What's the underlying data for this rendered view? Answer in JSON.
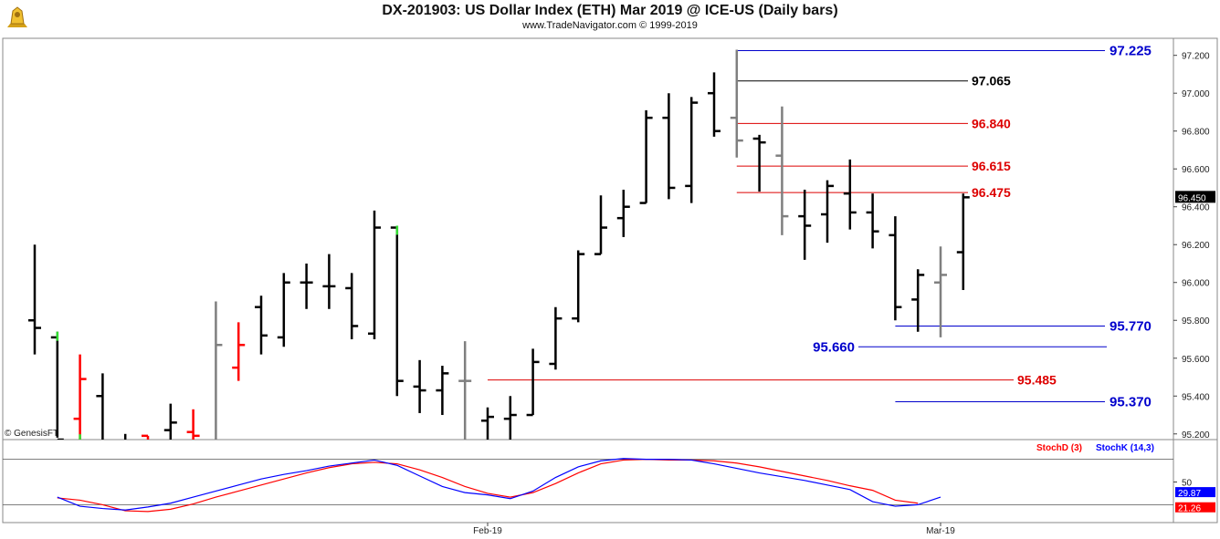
{
  "header": {
    "title": "DX-201903:  US Dollar Index (ETH) Mar 2019 @ ICE-US  (Daily bars)",
    "copyright": "www.TradeNavigator.com © 1999-2019"
  },
  "watermark": "© GenesisFT",
  "colors": {
    "black_bar": "#000000",
    "gray_bar": "#7f7f7f",
    "red_bar": "#ff0000",
    "green_bar": "#33dd33",
    "blue_level": "#0000cc",
    "red_level": "#dd0000",
    "stochk": "#0000ff",
    "stochd": "#ff0000"
  },
  "chart_data": [
    {
      "type": "ohlc",
      "price_axis": {
        "ylim": [
          95.17,
          97.29
        ],
        "ticks": [
          95.2,
          95.4,
          95.6,
          95.8,
          96.0,
          96.2,
          96.4,
          96.6,
          96.8,
          97.0,
          97.2
        ],
        "tick_labels": [
          "95.200",
          "95.400",
          "95.600",
          "95.800",
          "96.000",
          "96.200",
          "96.400",
          "96.600",
          "96.800",
          "97.000",
          "97.200"
        ]
      },
      "last_price": "96.450",
      "bars": [
        {
          "o": 95.8,
          "h": 96.2,
          "l": 95.62,
          "c": 95.76,
          "color": "black"
        },
        {
          "o": 95.71,
          "h": 95.74,
          "l": 95.18,
          "c": 95.17,
          "color": "black",
          "top": "green"
        },
        {
          "o": 95.28,
          "h": 95.62,
          "l": 95.15,
          "c": 95.49,
          "color": "red",
          "bottom": "green"
        },
        {
          "o": 95.4,
          "h": 95.52,
          "l": 95.1,
          "c": 95.1,
          "color": "black"
        },
        {
          "o": 95.1,
          "h": 95.2,
          "l": 95.0,
          "c": 95.15,
          "color": "black"
        },
        {
          "o": 95.19,
          "h": 95.19,
          "l": 95.05,
          "c": 95.15,
          "color": "red"
        },
        {
          "o": 95.22,
          "h": 95.36,
          "l": 95.05,
          "c": 95.26,
          "color": "black"
        },
        {
          "o": 95.21,
          "h": 95.33,
          "l": 95.05,
          "c": 95.19,
          "color": "red"
        },
        {
          "o": 95.1,
          "h": 95.9,
          "l": 95.0,
          "c": 95.67,
          "color": "gray"
        },
        {
          "o": 95.55,
          "h": 95.79,
          "l": 95.48,
          "c": 95.67,
          "color": "red"
        },
        {
          "o": 95.87,
          "h": 95.93,
          "l": 95.62,
          "c": 95.72,
          "color": "black"
        },
        {
          "o": 95.71,
          "h": 96.05,
          "l": 95.66,
          "c": 96.0,
          "color": "black"
        },
        {
          "o": 96.0,
          "h": 96.1,
          "l": 95.86,
          "c": 96.0,
          "color": "black"
        },
        {
          "o": 95.98,
          "h": 96.15,
          "l": 95.86,
          "c": 95.98,
          "color": "black"
        },
        {
          "o": 95.97,
          "h": 96.05,
          "l": 95.7,
          "c": 95.77,
          "color": "black"
        },
        {
          "o": 95.73,
          "h": 96.38,
          "l": 95.7,
          "c": 96.29,
          "color": "black"
        },
        {
          "o": 96.29,
          "h": 96.3,
          "l": 95.4,
          "c": 95.48,
          "color": "black",
          "top": "green"
        },
        {
          "o": 95.45,
          "h": 95.59,
          "l": 95.31,
          "c": 95.43,
          "color": "black"
        },
        {
          "o": 95.43,
          "h": 95.56,
          "l": 95.3,
          "c": 95.52,
          "color": "black"
        },
        {
          "o": 95.48,
          "h": 95.69,
          "l": 95.12,
          "c": 95.48,
          "color": "gray"
        },
        {
          "o": 95.27,
          "h": 95.34,
          "l": 95.12,
          "c": 95.29,
          "color": "black"
        },
        {
          "o": 95.28,
          "h": 95.4,
          "l": 95.12,
          "c": 95.3,
          "color": "black"
        },
        {
          "o": 95.3,
          "h": 95.65,
          "l": 95.3,
          "c": 95.58,
          "color": "black"
        },
        {
          "o": 95.57,
          "h": 95.87,
          "l": 95.54,
          "c": 95.81,
          "color": "black"
        },
        {
          "o": 95.81,
          "h": 96.17,
          "l": 95.79,
          "c": 96.15,
          "color": "black"
        },
        {
          "o": 96.15,
          "h": 96.46,
          "l": 96.15,
          "c": 96.29,
          "color": "black"
        },
        {
          "o": 96.34,
          "h": 96.49,
          "l": 96.24,
          "c": 96.4,
          "color": "black"
        },
        {
          "o": 96.42,
          "h": 96.91,
          "l": 96.42,
          "c": 96.87,
          "color": "black"
        },
        {
          "o": 96.87,
          "h": 97.0,
          "l": 96.44,
          "c": 96.5,
          "color": "black"
        },
        {
          "o": 96.51,
          "h": 96.98,
          "l": 96.42,
          "c": 96.95,
          "color": "black"
        },
        {
          "o": 97.0,
          "h": 97.11,
          "l": 96.77,
          "c": 96.8,
          "color": "black"
        },
        {
          "o": 96.87,
          "h": 97.23,
          "l": 96.66,
          "c": 96.75,
          "color": "gray"
        },
        {
          "o": 96.76,
          "h": 96.78,
          "l": 96.48,
          "c": 96.74,
          "color": "black"
        },
        {
          "o": 96.67,
          "h": 96.93,
          "l": 96.25,
          "c": 96.35,
          "color": "gray"
        },
        {
          "o": 96.35,
          "h": 96.49,
          "l": 96.12,
          "c": 96.3,
          "color": "black"
        },
        {
          "o": 96.36,
          "h": 96.54,
          "l": 96.21,
          "c": 96.51,
          "color": "black"
        },
        {
          "o": 96.47,
          "h": 96.65,
          "l": 96.28,
          "c": 96.37,
          "color": "black"
        },
        {
          "o": 96.37,
          "h": 96.47,
          "l": 96.18,
          "c": 96.27,
          "color": "black"
        },
        {
          "o": 96.25,
          "h": 96.35,
          "l": 95.8,
          "c": 95.87,
          "color": "black"
        },
        {
          "o": 95.91,
          "h": 96.07,
          "l": 95.74,
          "c": 96.04,
          "color": "black"
        },
        {
          "o": 96.0,
          "h": 96.19,
          "l": 95.71,
          "c": 96.04,
          "color": "gray"
        },
        {
          "o": 96.16,
          "h": 96.47,
          "l": 95.96,
          "c": 96.45,
          "color": "black"
        }
      ],
      "levels": [
        {
          "value": 97.225,
          "label": "97.225",
          "color": "blue",
          "label_at": "right",
          "start_bar": 31
        },
        {
          "value": 97.065,
          "label": "97.065",
          "color": "black",
          "label_at": "mid",
          "start_bar": 31
        },
        {
          "value": 96.84,
          "label": "96.840",
          "color": "red",
          "label_at": "mid",
          "start_bar": 31
        },
        {
          "value": 96.615,
          "label": "96.615",
          "color": "red",
          "label_at": "mid",
          "start_bar": 31
        },
        {
          "value": 96.475,
          "label": "96.475",
          "color": "red",
          "label_at": "mid",
          "start_bar": 31
        },
        {
          "value": 95.77,
          "label": "95.770",
          "color": "blue",
          "label_at": "right",
          "start_bar": 38
        },
        {
          "value": 95.66,
          "label": "95.660",
          "color": "blue",
          "label_at": "left",
          "start_bar": 38
        },
        {
          "value": 95.485,
          "label": "95.485",
          "color": "red",
          "label_at": "mid2",
          "start_bar": 20
        },
        {
          "value": 95.37,
          "label": "95.370",
          "color": "blue",
          "label_at": "right",
          "start_bar": 38
        }
      ]
    },
    {
      "type": "line",
      "ylim": [
        0,
        100
      ],
      "ticks": [
        50
      ],
      "tick_labels": [
        "50"
      ],
      "guides": [
        80,
        20
      ],
      "x_labels": [
        {
          "bar": 20,
          "label": "Feb-19"
        },
        {
          "bar": 40,
          "label": "Mar-19"
        }
      ],
      "legend": [
        "StochD (3)",
        "StochK (14,3)"
      ],
      "series": [
        {
          "name": "StochD (3)",
          "color": "red",
          "last": "21.26",
          "values": [
            29,
            26,
            20,
            12,
            11,
            14,
            21,
            30,
            38,
            46,
            54,
            62,
            69,
            74,
            76,
            74,
            66,
            56,
            44,
            35,
            30,
            36,
            48,
            62,
            74,
            79,
            80,
            79,
            79,
            78,
            75,
            70,
            64,
            58,
            52,
            45,
            39,
            26,
            22
          ]
        },
        {
          "name": "StochK (14,3)",
          "color": "blue",
          "last": "29.87",
          "values": [
            30,
            18,
            15,
            13,
            17,
            22,
            30,
            38,
            46,
            54,
            60,
            65,
            71,
            75,
            79,
            72,
            58,
            44,
            36,
            33,
            28,
            38,
            56,
            70,
            78,
            81,
            80,
            80,
            79,
            74,
            68,
            62,
            57,
            52,
            46,
            40,
            24,
            18,
            20,
            30
          ]
        }
      ]
    }
  ]
}
